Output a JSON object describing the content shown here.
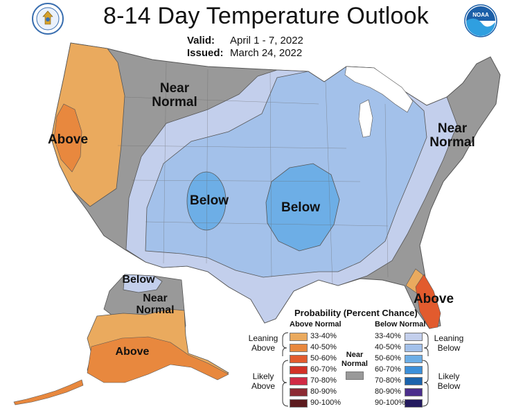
{
  "header": {
    "title": "8-14 Day Temperature Outlook",
    "valid_label": "Valid:",
    "valid_value": "April 1 - 7, 2022",
    "issued_label": "Issued:",
    "issued_value": "March 24, 2022",
    "doc_logo_icon": "dept-of-commerce-seal-icon",
    "noaa_logo_icon": "noaa-logo-icon",
    "noaa_logo_text": "NOAA"
  },
  "map_labels": {
    "near_normal_west": "Near Normal",
    "near_normal_east": "Near Normal",
    "above_west": "Above",
    "below_rockies": "Below",
    "below_plains": "Below",
    "above_florida": "Above",
    "alaska_below": "Below",
    "alaska_near_normal": "Near Normal",
    "alaska_above": "Above"
  },
  "legend": {
    "title": "Probability (Percent Chance)",
    "above_header": "Above Normal",
    "below_header": "Below Normal",
    "leaning_above": "Leaning Above",
    "likely_above": "Likely Above",
    "leaning_below": "Leaning Below",
    "likely_below": "Likely Below",
    "near_normal": "Near Normal",
    "near_normal_color": "#999999",
    "above": [
      {
        "range": "33-40%",
        "color": "#EAAA5E"
      },
      {
        "range": "40-50%",
        "color": "#E8883E"
      },
      {
        "range": "50-60%",
        "color": "#E25B2E"
      },
      {
        "range": "60-70%",
        "color": "#D23127"
      },
      {
        "range": "70-80%",
        "color": "#D02B45"
      },
      {
        "range": "80-90%",
        "color": "#8B2A33"
      },
      {
        "range": "90-100%",
        "color": "#5C1A1E"
      }
    ],
    "below": [
      {
        "range": "33-40%",
        "color": "#C3CFEC"
      },
      {
        "range": "40-50%",
        "color": "#A3C1EA"
      },
      {
        "range": "50-60%",
        "color": "#6DAEE6"
      },
      {
        "range": "60-70%",
        "color": "#3C8FD9"
      },
      {
        "range": "70-80%",
        "color": "#1B63AC"
      },
      {
        "range": "80-90%",
        "color": "#4B2E8C"
      },
      {
        "range": "90-100%",
        "color": "#231A5E"
      }
    ]
  }
}
